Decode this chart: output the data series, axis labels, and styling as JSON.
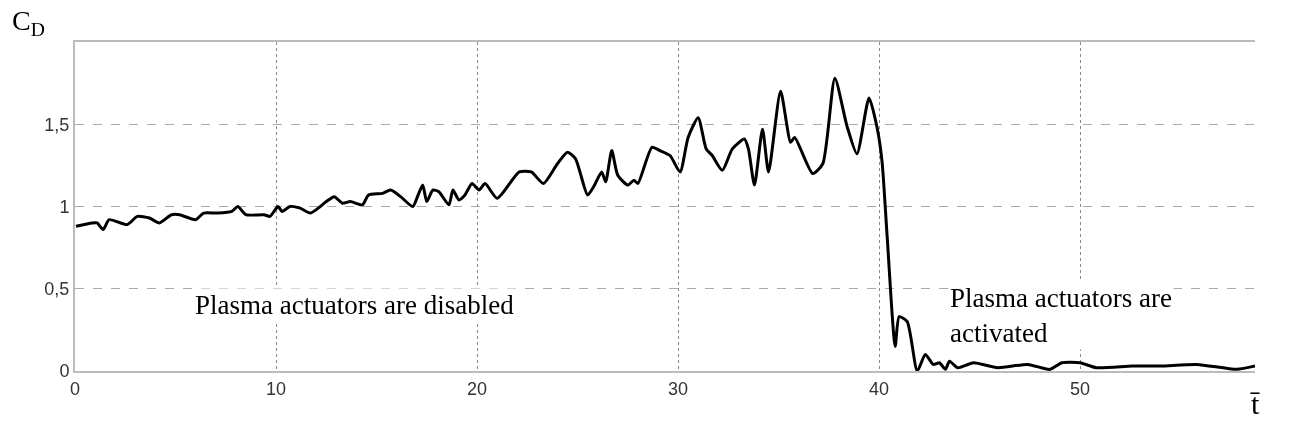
{
  "chart_data": {
    "type": "line",
    "ylabel": "C$_{D}$",
    "xlabel": "t̄",
    "annotations": [
      "Plasma actuators are disabled",
      "Plasma actuators are activated"
    ],
    "x": [
      0.05,
      0.85,
      1.1,
      1.4,
      1.7,
      2.6,
      3.1,
      3.7,
      4.2,
      4.8,
      5.2,
      6.0,
      6.4,
      7.1,
      7.8,
      8.1,
      8.5,
      9.4,
      9.7,
      10.1,
      10.3,
      10.7,
      11.2,
      11.7,
      12.1,
      12.5,
      12.9,
      13.3,
      13.7,
      14.3,
      14.6,
      15.3,
      15.7,
      16.2,
      16.8,
      17.1,
      17.3,
      17.5,
      17.8,
      18.1,
      18.6,
      18.8,
      19.1,
      19.4,
      19.75,
      20.1,
      20.4,
      21.0,
      22.1,
      22.7,
      23.3,
      24.0,
      24.5,
      24.9,
      25.5,
      25.8,
      26.2,
      26.4,
      26.7,
      27.0,
      27.5,
      27.8,
      28.0,
      28.7,
      29.1,
      29.6,
      30.1,
      30.5,
      31.0,
      31.4,
      31.7,
      32.2,
      32.7,
      33.3,
      33.5,
      33.8,
      34.2,
      34.5,
      35.1,
      35.6,
      35.8,
      36.7,
      37.2,
      37.8,
      38.4,
      38.9,
      39.5,
      39.9,
      40.15,
      40.4,
      40.8,
      41.0,
      41.4,
      41.9,
      42.3,
      42.7,
      43.0,
      43.3,
      43.5,
      43.9,
      44.7,
      45.9,
      47.4,
      48.5,
      49.1,
      50.0,
      50.8,
      52.6,
      54.0,
      55.8,
      57.8,
      58.7
    ],
    "values": [
      0.88,
      0.9,
      0.9,
      0.86,
      0.92,
      0.89,
      0.94,
      0.93,
      0.9,
      0.95,
      0.95,
      0.92,
      0.96,
      0.96,
      0.97,
      1.0,
      0.95,
      0.95,
      0.94,
      1.0,
      0.97,
      1.0,
      0.99,
      0.96,
      0.99,
      1.03,
      1.06,
      1.02,
      1.03,
      1.01,
      1.07,
      1.08,
      1.1,
      1.06,
      1.0,
      1.08,
      1.13,
      1.03,
      1.1,
      1.09,
      1.01,
      1.1,
      1.04,
      1.07,
      1.14,
      1.1,
      1.14,
      1.05,
      1.21,
      1.21,
      1.14,
      1.26,
      1.33,
      1.29,
      1.07,
      1.12,
      1.21,
      1.15,
      1.34,
      1.19,
      1.13,
      1.16,
      1.14,
      1.36,
      1.34,
      1.31,
      1.21,
      1.42,
      1.54,
      1.35,
      1.31,
      1.22,
      1.35,
      1.41,
      1.35,
      1.13,
      1.47,
      1.21,
      1.7,
      1.39,
      1.42,
      1.2,
      1.26,
      1.78,
      1.49,
      1.32,
      1.66,
      1.48,
      1.27,
      0.82,
      0.15,
      0.33,
      0.3,
      0.0,
      0.1,
      0.04,
      0.05,
      0.01,
      0.06,
      0.02,
      0.05,
      0.02,
      0.04,
      0.01,
      0.05,
      0.05,
      0.02,
      0.03,
      0.03,
      0.04,
      0.01,
      0.03
    ],
    "color": "#000000",
    "xlim": [
      0,
      58.7
    ],
    "xticks": [
      0,
      10,
      20,
      30,
      40,
      50
    ],
    "ylim": [
      0,
      2
    ],
    "yticks": [
      0,
      {
        "value": 0.5,
        "label": "0,5"
      },
      1,
      {
        "value": 1.5,
        "label": "1,5"
      }
    ],
    "grid": true,
    "line_style": "solid",
    "marker": "none"
  }
}
